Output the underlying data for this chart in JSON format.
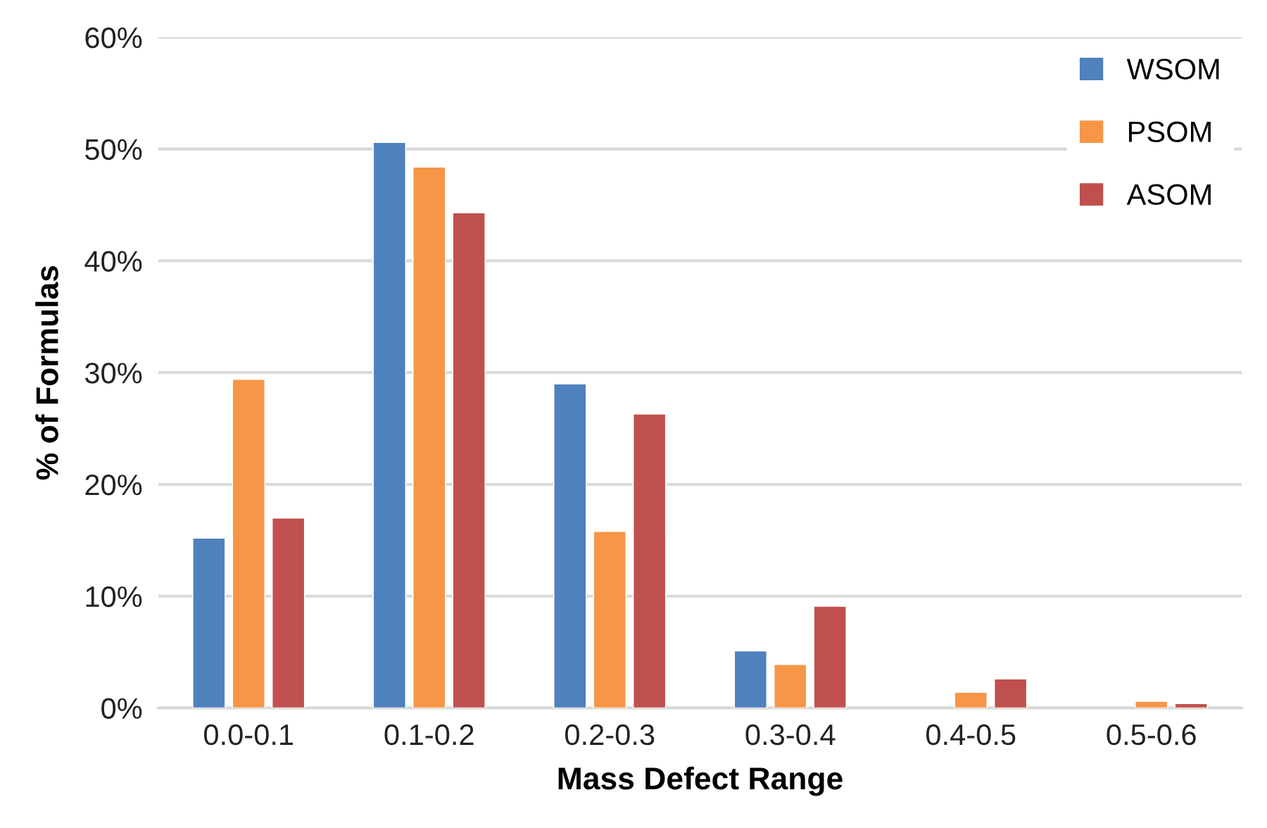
{
  "chart_data": {
    "type": "bar",
    "xlabel": "Mass Defect Range",
    "ylabel": "% of Formulas",
    "categories": [
      "0.0-0.1",
      "0.1-0.2",
      "0.2-0.3",
      "0.3-0.4",
      "0.4-0.5",
      "0.5-0.6"
    ],
    "series": [
      {
        "name": "WSOM",
        "color": "#4f81bd",
        "values": [
          15.2,
          50.6,
          29.0,
          5.1,
          null,
          null
        ]
      },
      {
        "name": "PSOM",
        "color": "#f79646",
        "values": [
          29.4,
          48.4,
          15.8,
          3.9,
          1.4,
          0.6
        ]
      },
      {
        "name": "ASOM",
        "color": "#c0504d",
        "values": [
          17.0,
          44.3,
          26.3,
          9.1,
          2.6,
          0.4
        ]
      }
    ],
    "ylim": [
      0,
      60
    ],
    "yticks": [
      {
        "value": 0,
        "label": "0%"
      },
      {
        "value": 10,
        "label": "10%"
      },
      {
        "value": 20,
        "label": "20%"
      },
      {
        "value": 30,
        "label": "30%"
      },
      {
        "value": 40,
        "label": "40%"
      },
      {
        "value": 50,
        "label": "50%"
      },
      {
        "value": 60,
        "label": "60%"
      }
    ],
    "grid": "y",
    "legend": "top right"
  }
}
